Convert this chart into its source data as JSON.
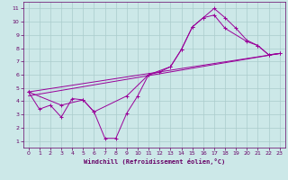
{
  "xlabel": "Windchill (Refroidissement éolien,°C)",
  "bg_color": "#cce8e8",
  "grid_color": "#aacccc",
  "line_color": "#990099",
  "xlim": [
    -0.5,
    23.5
  ],
  "ylim": [
    0.5,
    11.5
  ],
  "xticks": [
    0,
    1,
    2,
    3,
    4,
    5,
    6,
    7,
    8,
    9,
    10,
    11,
    12,
    13,
    14,
    15,
    16,
    17,
    18,
    19,
    20,
    21,
    22,
    23
  ],
  "yticks": [
    1,
    2,
    3,
    4,
    5,
    6,
    7,
    8,
    9,
    10,
    11
  ],
  "line_zigzag": {
    "x": [
      0,
      1,
      2,
      3,
      4,
      5,
      6,
      7,
      8,
      9,
      10,
      11,
      12,
      13,
      14,
      15,
      16,
      17,
      18,
      19,
      20,
      21,
      22,
      23
    ],
    "y": [
      4.7,
      3.4,
      3.7,
      2.8,
      4.2,
      4.1,
      3.2,
      1.2,
      1.2,
      3.1,
      4.4,
      6.0,
      6.2,
      6.6,
      7.9,
      9.6,
      10.3,
      11.0,
      10.3,
      9.5,
      8.6,
      8.2,
      7.5,
      7.6
    ]
  },
  "line_smooth": {
    "x": [
      0,
      3,
      5,
      6,
      9,
      11,
      13,
      14,
      15,
      16,
      17,
      18,
      20,
      21,
      22,
      23
    ],
    "y": [
      4.7,
      3.7,
      4.1,
      3.2,
      4.4,
      6.0,
      6.6,
      7.9,
      9.6,
      10.3,
      10.5,
      9.5,
      8.5,
      8.2,
      7.5,
      7.6
    ]
  },
  "line_straight1": {
    "x": [
      0,
      23
    ],
    "y": [
      4.7,
      7.6
    ]
  },
  "line_straight2": {
    "x": [
      0,
      23
    ],
    "y": [
      4.4,
      7.6
    ]
  }
}
